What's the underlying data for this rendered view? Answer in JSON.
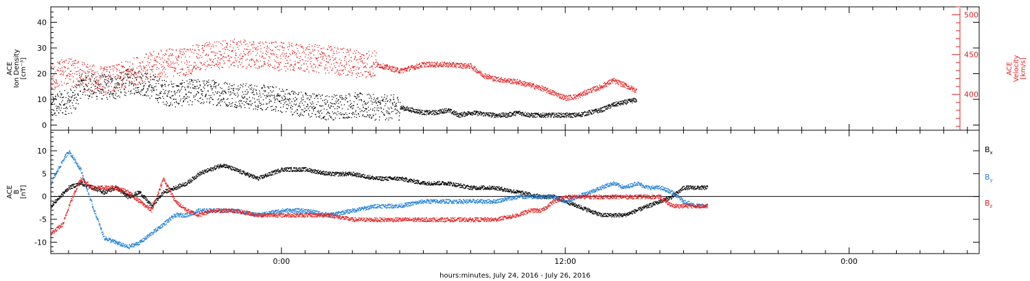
{
  "colors": {
    "black": "#000000",
    "red": "#e02020",
    "blue": "#1e7fd6"
  },
  "chart_data": [
    {
      "type": "scatter",
      "panel": "top",
      "ylabel": [
        "ACE",
        "Ion Density",
        "[cm⁻³]"
      ],
      "ylabel_right": [
        "ACE",
        "Velocity",
        "[km/s]"
      ],
      "ylim": [
        -2,
        46
      ],
      "yticks": [
        0,
        10,
        20,
        30,
        40
      ],
      "ylim_right": [
        355,
        510
      ],
      "yticks_right": [
        400,
        450,
        500
      ],
      "xlim_hours": [
        -19.5,
        59
      ],
      "series": [
        {
          "axis": "left",
          "color": "#000000",
          "keypoints": [
            [
              -19.5,
              7
            ],
            [
              -18.5,
              9
            ],
            [
              -17.5,
              10
            ],
            [
              -17,
              16
            ],
            [
              -16,
              15
            ],
            [
              -14,
              15
            ],
            [
              -13,
              17
            ],
            [
              -12,
              17
            ],
            [
              -11,
              15
            ],
            [
              -10,
              13
            ],
            [
              -9,
              12
            ],
            [
              -8,
              13
            ],
            [
              -6,
              13
            ],
            [
              -4,
              12
            ],
            [
              -2,
              11
            ],
            [
              0,
              10
            ],
            [
              1,
              9
            ],
            [
              2,
              8
            ],
            [
              4,
              7
            ],
            [
              6,
              8
            ],
            [
              8,
              7
            ],
            [
              10,
              7
            ],
            [
              11,
              6
            ],
            [
              12,
              5
            ],
            [
              13,
              5
            ],
            [
              14,
              6
            ],
            [
              15,
              4
            ],
            [
              16,
              5
            ],
            [
              18,
              4
            ],
            [
              19,
              4
            ],
            [
              20,
              5
            ],
            [
              21,
              4
            ],
            [
              22,
              4
            ],
            [
              24,
              4
            ],
            [
              25,
              4
            ],
            [
              26,
              5
            ],
            [
              27,
              6
            ],
            [
              28,
              8
            ],
            [
              29,
              9
            ],
            [
              30,
              10
            ]
          ],
          "spread_until_hours": 10,
          "spread": 5
        },
        {
          "axis": "right",
          "color": "#e02020",
          "keypoints": [
            [
              -19.5,
              420
            ],
            [
              -18.5,
              430
            ],
            [
              -17,
              425
            ],
            [
              -16,
              420
            ],
            [
              -15,
              418
            ],
            [
              -14,
              420
            ],
            [
              -12,
              432
            ],
            [
              -10,
              440
            ],
            [
              -8,
              442
            ],
            [
              -6,
              450
            ],
            [
              -4,
              452
            ],
            [
              -2,
              450
            ],
            [
              0,
              448
            ],
            [
              2,
              446
            ],
            [
              4,
              444
            ],
            [
              6,
              440
            ],
            [
              8,
              438
            ],
            [
              10,
              430
            ],
            [
              12,
              438
            ],
            [
              14,
              438
            ],
            [
              16,
              436
            ],
            [
              17,
              425
            ],
            [
              18,
              420
            ],
            [
              19,
              418
            ],
            [
              20,
              416
            ],
            [
              21,
              412
            ],
            [
              22,
              408
            ],
            [
              23,
              402
            ],
            [
              24,
              396
            ],
            [
              25,
              398
            ],
            [
              26,
              405
            ],
            [
              27,
              410
            ],
            [
              28,
              418
            ],
            [
              29,
              412
            ],
            [
              30,
              405
            ]
          ],
          "spread_until_hours": 8,
          "spread": 18
        }
      ]
    },
    {
      "type": "scatter",
      "panel": "bottom",
      "ylabel": [
        "ACE",
        "B",
        "[nT]"
      ],
      "ylim": [
        -12.5,
        14.5
      ],
      "yticks": [
        -10,
        -5,
        0,
        5,
        10
      ],
      "zero_line": true,
      "xlim_hours": [
        -19.5,
        59
      ],
      "xticks_labeled": [
        {
          "hours": 0,
          "label": "0:00"
        },
        {
          "hours": 24,
          "label": "12:00"
        },
        {
          "hours": 48,
          "label": "0:00"
        }
      ],
      "xlabel": "hours:minutes, July 24, 2016 - July 26, 2016",
      "series": [
        {
          "name": "B",
          "subscript": "x",
          "color": "#000000",
          "keypoints": [
            [
              -19.5,
              -2
            ],
            [
              -18,
              2
            ],
            [
              -17,
              3
            ],
            [
              -16,
              2
            ],
            [
              -15,
              1
            ],
            [
              -14,
              2
            ],
            [
              -13,
              0
            ],
            [
              -12,
              1
            ],
            [
              -11,
              -2
            ],
            [
              -10,
              1
            ],
            [
              -9,
              2
            ],
            [
              -8,
              3
            ],
            [
              -7,
              5
            ],
            [
              -6,
              6
            ],
            [
              -5,
              7
            ],
            [
              -4,
              6
            ],
            [
              -3,
              5
            ],
            [
              -2,
              4
            ],
            [
              0,
              6
            ],
            [
              2,
              6
            ],
            [
              4,
              5
            ],
            [
              6,
              5
            ],
            [
              8,
              4
            ],
            [
              10,
              4
            ],
            [
              12,
              3
            ],
            [
              14,
              3
            ],
            [
              16,
              2
            ],
            [
              18,
              2
            ],
            [
              20,
              1
            ],
            [
              22,
              0
            ],
            [
              23,
              0
            ],
            [
              24,
              -1
            ],
            [
              25,
              -2
            ],
            [
              26,
              -3
            ],
            [
              27,
              -4
            ],
            [
              28,
              -4
            ],
            [
              29,
              -4
            ],
            [
              30,
              -3
            ],
            [
              31,
              -2
            ],
            [
              32,
              -1
            ],
            [
              33,
              0
            ],
            [
              34,
              2
            ],
            [
              35,
              2
            ],
            [
              36,
              2
            ]
          ]
        },
        {
          "name": "B",
          "subscript": "y",
          "color": "#1e7fd6",
          "keypoints": [
            [
              -19.5,
              3
            ],
            [
              -18.5,
              8
            ],
            [
              -18,
              10
            ],
            [
              -17,
              6
            ],
            [
              -16,
              -2
            ],
            [
              -15,
              -9
            ],
            [
              -14,
              -10
            ],
            [
              -13,
              -11
            ],
            [
              -12,
              -10
            ],
            [
              -11,
              -8
            ],
            [
              -10,
              -6
            ],
            [
              -9,
              -4
            ],
            [
              -8,
              -4
            ],
            [
              -7,
              -3
            ],
            [
              -6,
              -3
            ],
            [
              -4,
              -3
            ],
            [
              -2,
              -4
            ],
            [
              0,
              -3
            ],
            [
              2,
              -3
            ],
            [
              4,
              -4
            ],
            [
              6,
              -3
            ],
            [
              8,
              -2
            ],
            [
              10,
              -2
            ],
            [
              12,
              -1
            ],
            [
              14,
              -1
            ],
            [
              16,
              -1
            ],
            [
              18,
              -1
            ],
            [
              20,
              0
            ],
            [
              22,
              0
            ],
            [
              23,
              0
            ],
            [
              24,
              -1
            ],
            [
              25,
              0
            ],
            [
              26,
              1
            ],
            [
              27,
              2
            ],
            [
              28,
              3
            ],
            [
              29,
              2
            ],
            [
              30,
              3
            ],
            [
              31,
              2
            ],
            [
              32,
              2
            ],
            [
              33,
              1
            ],
            [
              34,
              -1
            ],
            [
              35,
              -2
            ],
            [
              36,
              -2
            ]
          ]
        },
        {
          "name": "B",
          "subscript": "z",
          "color": "#e02020",
          "keypoints": [
            [
              -19.5,
              -8
            ],
            [
              -18.5,
              -6
            ],
            [
              -18,
              -2
            ],
            [
              -17,
              4
            ],
            [
              -16,
              2
            ],
            [
              -15,
              2
            ],
            [
              -14,
              2
            ],
            [
              -13,
              1
            ],
            [
              -12,
              -1
            ],
            [
              -11,
              -3
            ],
            [
              -10,
              4
            ],
            [
              -9,
              -1
            ],
            [
              -8,
              -3
            ],
            [
              -7,
              -4
            ],
            [
              -6,
              -3
            ],
            [
              -4,
              -3
            ],
            [
              -2,
              -4
            ],
            [
              0,
              -4
            ],
            [
              2,
              -4
            ],
            [
              4,
              -4
            ],
            [
              6,
              -5
            ],
            [
              8,
              -5
            ],
            [
              10,
              -5
            ],
            [
              12,
              -5
            ],
            [
              14,
              -5
            ],
            [
              16,
              -5
            ],
            [
              18,
              -5
            ],
            [
              20,
              -4
            ],
            [
              21,
              -3
            ],
            [
              22,
              -3
            ],
            [
              23,
              -1
            ],
            [
              24,
              0
            ],
            [
              25,
              0
            ],
            [
              26,
              0
            ],
            [
              27,
              0
            ],
            [
              28,
              0
            ],
            [
              29,
              0
            ],
            [
              30,
              0
            ],
            [
              31,
              0
            ],
            [
              32,
              0
            ],
            [
              33,
              -2
            ],
            [
              34,
              -2
            ],
            [
              35,
              -2
            ],
            [
              36,
              -2
            ]
          ]
        }
      ]
    }
  ]
}
